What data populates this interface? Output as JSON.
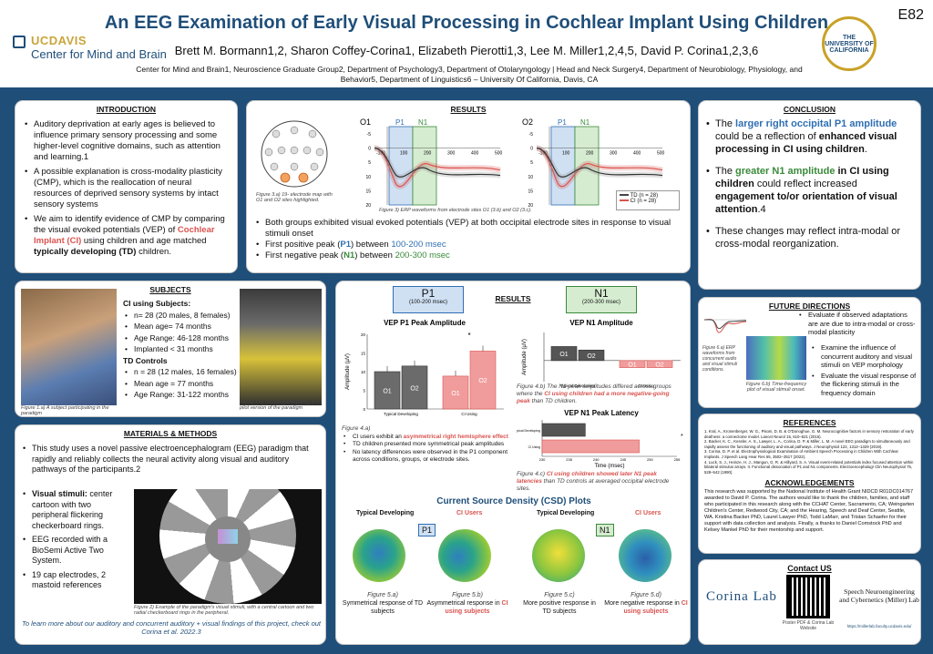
{
  "header": {
    "title": "An EEG Examination of Early Visual Processing in Cochlear Implant Using Children",
    "authors": "Brett M. Bormann1,2, Sharon Coffey-Corina1, Elizabeth Pierotti1,3, Lee M. Miller1,2,4,5, David P. Corina1,2,3,6",
    "affiliations": "Center for Mind and Brain1, Neuroscience Graduate Group2, Department of Psychology3, Department of Otolaryngology | Head and Neck Surgery4, Department of Neurobiology, Physiology, and Behavior5, Department of Linguistics6 – University Of California, Davis, CA",
    "code": "E82",
    "logo_uc": "UCDAVIS",
    "logo_center": "Center for Mind and Brain",
    "seal_text": "THE UNIVERSITY OF CALIFORNIA"
  },
  "intro": {
    "title": "INTRODUCTION",
    "b1": "Auditory deprivation at early ages is believed to influence primary sensory processing and some higher-level cognitive domains, such as attention and learning.1",
    "b2": "A possible explanation is cross-modality plasticity (CMP), which is the reallocation of neural resources of deprived sensory systems by intact sensory systems",
    "b3a": "We aim to identify evidence of CMP by comparing the visual evoked potentials (VEP) of ",
    "b3b": "Cochlear Implant (CI)",
    "b3c": " using children and age matched ",
    "b3d": "typically developing (TD)",
    "b3e": " children."
  },
  "results_top": {
    "title": "RESULTS",
    "map_caption": "Figure 3.a) 19- electrode map with O1 and O2 sites highlighted.",
    "erp_caption": "Figure 3) ERP waveforms from electrode sites O1 (3.b) and O2 (3.c).",
    "o1": "O1",
    "o2": "O2",
    "p1": "P1",
    "n1": "N1",
    "y_ticks": [
      "-5",
      "0",
      "5",
      "10",
      "15",
      "20"
    ],
    "x_ticks": [
      "-100",
      "100",
      "200",
      "300",
      "400",
      "500"
    ],
    "legend_td": "TD (n = 28)",
    "legend_ci": "CI (n = 28)",
    "b1": "Both groups exhibited visual evoked potentials (VEP) at both occipital electrode sites in response to visual stimuli onset",
    "b2a": "First positive peak (",
    "b2b": "P1",
    "b2c": ") between ",
    "b2d": "100-200 msec",
    "b3a": "First negative peak (",
    "b3b": "N1",
    "b3c": ") between ",
    "b3d": "200-300 msec"
  },
  "conclusion": {
    "title": "CONCLUSION",
    "c1a": "The ",
    "c1b": "larger right occipital P1 amplitude",
    "c1c": " could be a reflection of ",
    "c1d": "enhanced visual processing in CI using children",
    "c1e": ".",
    "c2a": "The ",
    "c2b": "greater N1 amplitude",
    "c2c": " in CI using children",
    "c2d": " could reflect increased ",
    "c2e": "engagement to/or orientation of visual attention",
    "c2f": ".4",
    "c3": "These changes may reflect intra-modal or cross-modal reorganization."
  },
  "subjects": {
    "title": "SUBJECTS",
    "ci_head": "CI using Subjects:",
    "ci": [
      "n= 28 (20 males, 8 females)",
      "Mean age= 74 months",
      "Age Range: 46-128 months",
      "Implanted < 31 months"
    ],
    "td_head": "TD Controls",
    "td": [
      "n = 28 (12 males, 16 females)",
      "Mean age = 77 months",
      "Age Range: 31-122 months"
    ],
    "cap_a": "Figure 1.a) A subject participating in the paradigm",
    "cap_b": "Figure 1.b) CI user participating in a pilot version of the paradigm"
  },
  "results_mid": {
    "title": "RESULTS",
    "p1_box": "P1",
    "p1_range": "(100-200 msec)",
    "n1_box": "N1",
    "n1_range": "(200-300 msec)",
    "p1_chart_title": "VEP P1 Peak Amplitude",
    "n1_chart_title": "VEP N1 Amplitude",
    "lat_title": "VEP N1 Peak Latency",
    "ylabel": "Amplitude (µV)",
    "grp_td": "Typical Developing",
    "grp_ci": "CI Using",
    "o1": "O1",
    "o2": "O2",
    "cap4a": "Figure 4.a)",
    "b4a_1": "CI users exhibit an ",
    "b4a_2": "asymmetrical right hemisphere effect",
    "b4a_3": "TD children presented more symmetrical peak amplitudes",
    "b4a_4": "No latency differences were observed in the P1 component across conditions, groups, or electrode sites.",
    "cap4b_1": "Figure 4.b) The N1 peak amplitudes differed across groups where the ",
    "cap4b_2": "CI using children had a more negative-going peak",
    "cap4b_3": " than TD children.",
    "lat_xlabel": "Time (msec)",
    "lat_ticks": [
      "230",
      "235",
      "240",
      "245",
      "250",
      "255"
    ],
    "lat_y_td": "Typical Developing",
    "lat_y_ci": "CI Using",
    "cap4c_1": "Figure 4.c) ",
    "cap4c_2": "CI using children showed later N1 peak latencies",
    "cap4c_3": " than TD controls at averaged occipital electrode sites.",
    "sig": "*"
  },
  "csd": {
    "title": "Current Source Density (CSD) Plots",
    "td": "Typical Developing",
    "ci": "CI Users",
    "p1": "P1",
    "n1": "N1",
    "f5a": "Figure 5.a)",
    "f5a_t": "Symmetrical response of TD subjects",
    "f5b": "Figure 5.b)",
    "f5b_t1": "Asymmetrical response in ",
    "f5b_t2": "CI using subjects",
    "f5c": "Figure 5.c)",
    "f5c_t": "More positive response in TD subjects",
    "f5d": "Figure 5.d)",
    "f5d_t1": "More negative response in ",
    "f5d_t2": "CI using subjects"
  },
  "methods": {
    "title": "MATERIALS & METHODS",
    "b1": "This study uses a novel passive electroencephalogram (EEG) paradigm that rapidly and reliably collects the neural activity along visual and auditory pathways of the participants.2",
    "b2a": "Visual stimuli:",
    "b2b": " center cartoon with two peripheral flickering checkerboard rings.",
    "b3": "EEG recorded with a BioSemi Active Two System.",
    "b4": "19 cap electrodes, 2 mastoid references",
    "cap": "Figure 2) Example of the paradigm's visual stimuli, with a central cartoon and two radial checkerboard rings in the peripheral.",
    "foot": "To learn more about our auditory and concurrent auditory + visual findings of this project, check out Corina et al. 2022.3"
  },
  "future": {
    "title": "FUTURE DIRECTIONS",
    "f1": "Evaluate if observed adaptations are are due to intra-modal or cross-modal plasticity",
    "f2": "Examine the influence of concurrent auditory and visual stimuli on VEP morphology",
    "f3": "Evaluate the visual response of the flickering stimuli in the frequency domain",
    "cap_a": "Figure 6.a) ERP waveforms from concurrent audio and visual stimuli conditions.",
    "cap_b": "Figure 6.b) Time-frequency plot of visual stimuli onset."
  },
  "references": {
    "title": "REFERENCES",
    "r1": "1. Kral, A., Kronenberger, W. G., Pisoni, D. B. & O'Donoghue, G. M. Neurocognitive factors in sensory restoration of early deafness: a connectome model. Lancet Neurol 15, 610–621 (2016).",
    "r2": "2. Backer, K. C., Kessler, A. S., Lawyer, L. A., Corina, D. P. & Miller, L. M. A novel EEG paradigm to simultaneously and rapidly assess the functioning of auditory and visual pathways. J Neurophysiol 122, 1312–1329 (2019).",
    "r3": "3. Corina, D. P. et al. Electrophysiological Examination of Ambient Speech Processing in Children With Cochlear Implants. J Speech Lang Hear Res 65, 3502–3517 (2022).",
    "r4": "4. Luck, S. J., Heinze, H. J., Mangun, G. R. & Hillyard, S. A. Visual event-related potentials index focused attention within bilateral stimulus arrays. II. Functional dissociation of P1 and N1 components. Electroencephalogr Clin Neurophysiol 75, 528–542 (1990)."
  },
  "ack": {
    "title": "ACKNOWLEDGEMENTS",
    "text": "This research was supported by the National Institute of Health Grant NIDCD R01DC014767 awarded to David P. Corina. The authors would like to thank the children, families, and staff who participated in this research along with the CCHAT Center, Sacramento, CA; Weingarten Children's Center, Redwood City, CA; and the Hearing, Speech and Deaf Center, Seattle, WA. Kristina Backer PhD, Laurel Lawyer PhD, Todd LaMarr, and Tristan Schaefer for their support with data collection and analysis. Finally, a thanks to Daniel Comstock PhD and Kelsey Mankel PhD for their mentorship and support."
  },
  "contact": {
    "title": "Contact US",
    "corina": "Corina Lab",
    "qr_cap": "Poster PDF & Corina Lab Website",
    "snec": "Speech Neuroengineering and Cybernetics (Miller) Lab",
    "url": "https://millerlab.faculty.ucdavis.edu/"
  },
  "chart_data": [
    {
      "type": "bar",
      "title": "VEP P1 Peak Amplitude",
      "ylabel": "Amplitude (µV)",
      "categories": [
        "Typical Developing O1",
        "Typical Developing O2",
        "CI Using O1",
        "CI Using O2"
      ],
      "values": [
        10,
        11.5,
        8.8,
        15.5
      ],
      "ylim": [
        0,
        20
      ]
    },
    {
      "type": "bar",
      "title": "VEP N1 Amplitude",
      "ylabel": "Amplitude (µV)",
      "categories": [
        "Typical Developing O1",
        "Typical Developing O2",
        "CI Using O1",
        "CI Using O2"
      ],
      "values": [
        4,
        3,
        -2,
        -2
      ],
      "ylim": [
        -6,
        8
      ]
    },
    {
      "type": "bar",
      "title": "VEP N1 Peak Latency",
      "xlabel": "Time (msec)",
      "categories": [
        "Typical Developing",
        "CI Using"
      ],
      "values": [
        238,
        248
      ],
      "xlim": [
        230,
        255
      ]
    }
  ]
}
